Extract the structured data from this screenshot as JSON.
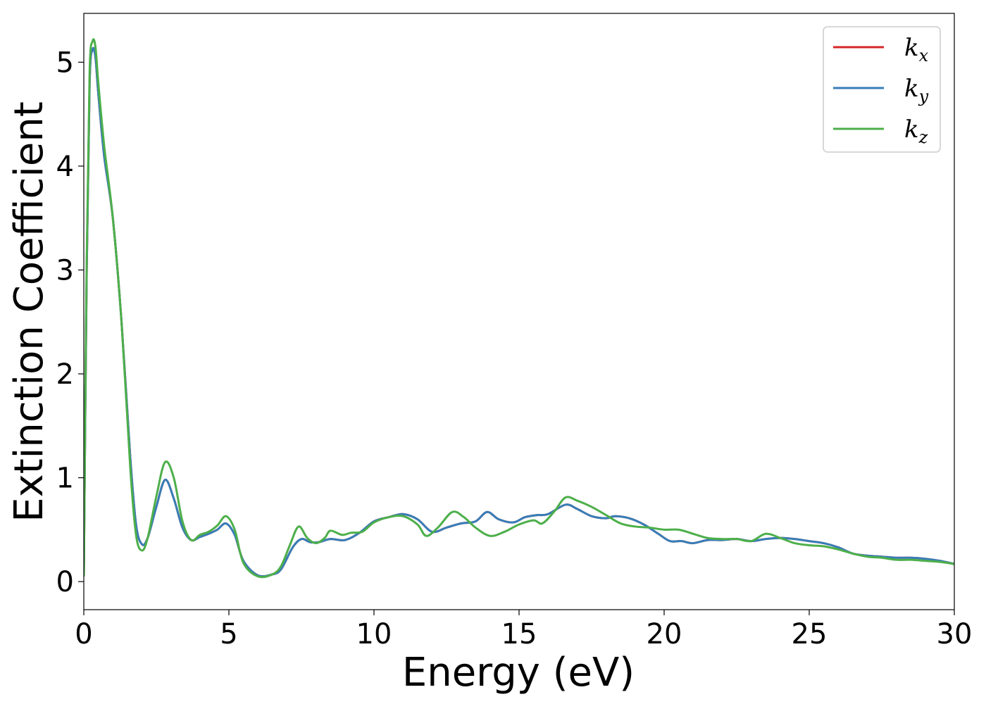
{
  "chart_data": {
    "type": "line",
    "xlabel": "Energy (eV)",
    "ylabel": "Extinction Coefficient",
    "xlim": [
      0,
      30
    ],
    "ylim": [
      -0.27,
      5.47
    ],
    "xticks": [
      0,
      5,
      10,
      15,
      20,
      25,
      30
    ],
    "yticks": [
      0,
      1,
      2,
      3,
      4,
      5
    ],
    "grid": false,
    "legend_position": "top-right",
    "series": [
      {
        "name": "k",
        "subscript": "x",
        "color": "#d62728",
        "x": [
          0,
          0.1,
          0.2,
          0.3,
          0.4,
          0.5,
          0.7,
          1.0,
          1.3,
          1.6,
          1.8,
          2.0,
          2.2,
          2.5,
          2.8,
          3.1,
          3.4,
          3.7,
          4.0,
          4.3,
          4.6,
          4.9,
          5.2,
          5.5,
          6.0,
          6.5,
          6.8,
          7.2,
          7.5,
          7.8,
          8.1,
          8.5,
          9.0,
          9.5,
          10.0,
          10.5,
          11.0,
          11.5,
          12.0,
          12.5,
          13.0,
          13.5,
          13.9,
          14.3,
          14.8,
          15.2,
          15.6,
          16.0,
          16.6,
          17.0,
          17.5,
          18.0,
          18.3,
          18.8,
          19.3,
          19.8,
          20.2,
          20.6,
          21.0,
          21.5,
          22.0,
          22.5,
          23.0,
          23.5,
          24.0,
          24.5,
          25.0,
          25.5,
          26.0,
          26.5,
          27.0,
          27.5,
          28.0,
          28.5,
          29.0,
          29.5,
          30.0
        ],
        "y": [
          0.05,
          3.0,
          4.8,
          5.12,
          5.05,
          4.7,
          4.1,
          3.5,
          2.5,
          1.2,
          0.55,
          0.36,
          0.42,
          0.72,
          0.98,
          0.8,
          0.52,
          0.4,
          0.43,
          0.46,
          0.5,
          0.56,
          0.45,
          0.2,
          0.06,
          0.07,
          0.12,
          0.33,
          0.41,
          0.38,
          0.38,
          0.41,
          0.4,
          0.47,
          0.58,
          0.62,
          0.65,
          0.6,
          0.48,
          0.52,
          0.56,
          0.58,
          0.67,
          0.6,
          0.57,
          0.62,
          0.64,
          0.65,
          0.74,
          0.7,
          0.63,
          0.61,
          0.63,
          0.61,
          0.55,
          0.46,
          0.39,
          0.39,
          0.37,
          0.4,
          0.4,
          0.41,
          0.39,
          0.41,
          0.42,
          0.41,
          0.39,
          0.37,
          0.33,
          0.27,
          0.25,
          0.24,
          0.23,
          0.23,
          0.22,
          0.2,
          0.17
        ]
      },
      {
        "name": "k",
        "subscript": "y",
        "color": "#377eb8",
        "x": [
          0,
          0.1,
          0.2,
          0.3,
          0.4,
          0.5,
          0.7,
          1.0,
          1.3,
          1.6,
          1.8,
          2.0,
          2.2,
          2.5,
          2.8,
          3.1,
          3.4,
          3.7,
          4.0,
          4.3,
          4.6,
          4.9,
          5.2,
          5.5,
          6.0,
          6.5,
          6.8,
          7.2,
          7.5,
          7.8,
          8.1,
          8.5,
          9.0,
          9.5,
          10.0,
          10.5,
          11.0,
          11.5,
          12.0,
          12.5,
          13.0,
          13.5,
          13.9,
          14.3,
          14.8,
          15.2,
          15.6,
          16.0,
          16.6,
          17.0,
          17.5,
          18.0,
          18.3,
          18.8,
          19.3,
          19.8,
          20.2,
          20.6,
          21.0,
          21.5,
          22.0,
          22.5,
          23.0,
          23.5,
          24.0,
          24.5,
          25.0,
          25.5,
          26.0,
          26.5,
          27.0,
          27.5,
          28.0,
          28.5,
          29.0,
          29.5,
          30.0
        ],
        "y": [
          0.05,
          3.0,
          4.8,
          5.12,
          5.05,
          4.7,
          4.1,
          3.5,
          2.5,
          1.2,
          0.55,
          0.36,
          0.42,
          0.72,
          0.98,
          0.8,
          0.52,
          0.4,
          0.43,
          0.46,
          0.5,
          0.56,
          0.45,
          0.2,
          0.06,
          0.07,
          0.12,
          0.33,
          0.41,
          0.38,
          0.38,
          0.41,
          0.4,
          0.47,
          0.58,
          0.62,
          0.65,
          0.6,
          0.48,
          0.52,
          0.56,
          0.58,
          0.67,
          0.6,
          0.57,
          0.62,
          0.64,
          0.65,
          0.74,
          0.7,
          0.63,
          0.61,
          0.63,
          0.61,
          0.55,
          0.46,
          0.39,
          0.39,
          0.37,
          0.4,
          0.4,
          0.41,
          0.39,
          0.41,
          0.42,
          0.41,
          0.39,
          0.37,
          0.33,
          0.27,
          0.25,
          0.24,
          0.23,
          0.23,
          0.22,
          0.2,
          0.17
        ]
      },
      {
        "name": "k",
        "subscript": "z",
        "color": "#4daf4a",
        "x": [
          0,
          0.1,
          0.2,
          0.3,
          0.4,
          0.5,
          0.7,
          1.0,
          1.3,
          1.6,
          1.8,
          2.0,
          2.2,
          2.5,
          2.8,
          3.1,
          3.4,
          3.7,
          4.0,
          4.3,
          4.6,
          4.9,
          5.2,
          5.5,
          6.0,
          6.5,
          6.8,
          7.1,
          7.4,
          7.7,
          8.0,
          8.3,
          8.5,
          8.9,
          9.2,
          9.6,
          10.0,
          10.5,
          11.0,
          11.5,
          11.8,
          12.2,
          12.7,
          13.1,
          13.5,
          14.0,
          14.5,
          15.0,
          15.5,
          15.8,
          16.2,
          16.6,
          17.0,
          17.5,
          18.0,
          18.5,
          19.0,
          19.5,
          20.0,
          20.5,
          21.0,
          21.5,
          22.0,
          22.5,
          23.0,
          23.5,
          24.0,
          24.5,
          25.0,
          25.5,
          26.0,
          26.5,
          27.0,
          27.5,
          28.0,
          28.5,
          29.0,
          29.5,
          30.0
        ],
        "y": [
          0.05,
          3.1,
          4.9,
          5.2,
          5.15,
          4.8,
          4.2,
          3.5,
          2.5,
          1.1,
          0.45,
          0.3,
          0.42,
          0.82,
          1.15,
          1.0,
          0.58,
          0.4,
          0.45,
          0.48,
          0.54,
          0.63,
          0.5,
          0.18,
          0.05,
          0.07,
          0.15,
          0.35,
          0.53,
          0.42,
          0.37,
          0.42,
          0.49,
          0.45,
          0.47,
          0.48,
          0.57,
          0.62,
          0.63,
          0.55,
          0.44,
          0.52,
          0.67,
          0.62,
          0.52,
          0.44,
          0.48,
          0.55,
          0.59,
          0.56,
          0.67,
          0.81,
          0.78,
          0.72,
          0.64,
          0.56,
          0.53,
          0.52,
          0.5,
          0.5,
          0.46,
          0.42,
          0.41,
          0.41,
          0.39,
          0.46,
          0.42,
          0.37,
          0.35,
          0.34,
          0.31,
          0.27,
          0.24,
          0.23,
          0.21,
          0.21,
          0.2,
          0.19,
          0.17
        ]
      }
    ]
  }
}
